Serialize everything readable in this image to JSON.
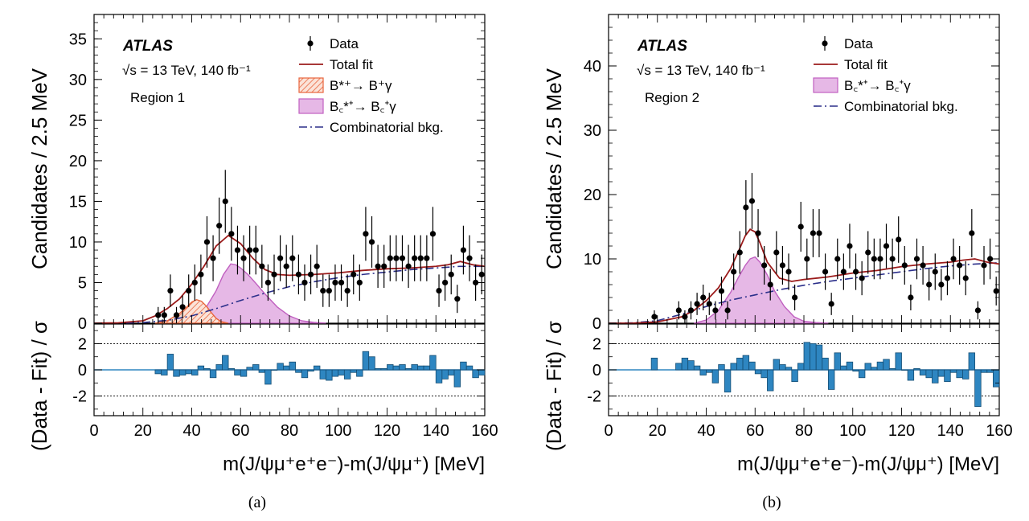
{
  "chart_data": [
    {
      "type": "scatter",
      "panel_label": "(a)",
      "experiment": "ATLAS",
      "energy_text": "√s = 13 TeV, 140 fb⁻¹",
      "region": "Region 1",
      "xlabel": "m(J/ψμ⁺e⁺e⁻)-m(J/ψμ⁺) [MeV]",
      "ylabel": "Candidates / 2.5 MeV",
      "ratio_ylabel": "(Data - Fit) / σ",
      "xlim": [
        0,
        160
      ],
      "ylim": [
        0,
        38
      ],
      "yticks": [
        0,
        5,
        10,
        15,
        20,
        25,
        30,
        35
      ],
      "xticks": [
        0,
        20,
        40,
        60,
        80,
        100,
        120,
        140,
        160
      ],
      "ratio_ylim": [
        -3.5,
        3.5
      ],
      "ratio_yticks": [
        -2,
        0,
        2
      ],
      "ratio_reference_lines": [
        -2,
        2
      ],
      "legend": {
        "data": "Data",
        "total_fit": "Total fit",
        "signal_b": "B*⁺→ B⁺γ",
        "signal_bc": "B꜀*⁺→ B꜀⁺γ",
        "combinatorial": "Combinatorial bkg."
      },
      "colors": {
        "data": "#000000",
        "total_fit": "#9b1b1b",
        "signal_b": "#e8643c",
        "signal_bc": "#c060c0",
        "signal_bc_fill": "#e6b8e6",
        "combinatorial": "#2b2f8a",
        "residual": "#2e86c1"
      },
      "series": [
        {
          "name": "Data",
          "x": [
            26.25,
            28.75,
            31.25,
            33.75,
            36.25,
            38.75,
            41.25,
            43.75,
            46.25,
            48.75,
            51.25,
            53.75,
            56.25,
            58.75,
            61.25,
            63.75,
            66.25,
            68.75,
            71.25,
            73.75,
            76.25,
            78.75,
            81.25,
            83.75,
            86.25,
            88.75,
            91.25,
            93.75,
            96.25,
            98.75,
            101.25,
            103.75,
            106.25,
            108.75,
            111.25,
            113.75,
            116.25,
            118.75,
            121.25,
            123.75,
            126.25,
            128.75,
            131.25,
            133.75,
            136.25,
            138.75,
            141.25,
            143.75,
            146.25,
            148.75,
            151.25,
            153.75,
            156.25,
            158.75
          ],
          "y": [
            1,
            1,
            4,
            1,
            2,
            4,
            5,
            6,
            10,
            8,
            12,
            15,
            11,
            9,
            8,
            9,
            9,
            7,
            5,
            6,
            8,
            7,
            8,
            6,
            5,
            6,
            7,
            4,
            4,
            5,
            5,
            4,
            6,
            5,
            11,
            10,
            7,
            7,
            8,
            8,
            8,
            7,
            8,
            8,
            8,
            11,
            4,
            5,
            6,
            3,
            9,
            8,
            5,
            6
          ]
        },
        {
          "name": "Total fit",
          "x": [
            0,
            10,
            20,
            25,
            30,
            35,
            40,
            45,
            50,
            55,
            60,
            65,
            70,
            75,
            80,
            90,
            100,
            110,
            120,
            130,
            140,
            145,
            150,
            155,
            160
          ],
          "y": [
            0,
            0.05,
            0.3,
            0.9,
            1.8,
            3.0,
            4.8,
            7.0,
            9.5,
            10.8,
            9.8,
            8.0,
            6.6,
            6.0,
            5.9,
            6.0,
            6.2,
            6.5,
            6.7,
            6.8,
            7.0,
            7.2,
            7.6,
            7.2,
            7.0
          ]
        },
        {
          "name": "B*⁺→ B⁺γ",
          "x": [
            25,
            30,
            35,
            38,
            40,
            42,
            44,
            46,
            48,
            50,
            52,
            55
          ],
          "y": [
            0,
            0.3,
            1.2,
            2.0,
            2.6,
            2.9,
            2.7,
            2.1,
            1.3,
            0.6,
            0.2,
            0
          ]
        },
        {
          "name": "B꜀*⁺→ B꜀⁺γ",
          "x": [
            40,
            45,
            50,
            53,
            56,
            58,
            60,
            63,
            66,
            70,
            75,
            80,
            85,
            90,
            95
          ],
          "y": [
            0.2,
            1.5,
            4.0,
            6.0,
            7.3,
            7.2,
            6.8,
            6.0,
            5.0,
            3.6,
            2.0,
            0.9,
            0.3,
            0.1,
            0
          ]
        },
        {
          "name": "Combinatorial bkg.",
          "x": [
            0,
            10,
            20,
            30,
            40,
            50,
            60,
            70,
            80,
            90,
            100,
            110,
            120,
            130,
            140,
            150,
            160
          ],
          "y": [
            0,
            0.01,
            0.08,
            0.35,
            0.9,
            1.8,
            2.8,
            3.7,
            4.5,
            5.1,
            5.6,
            6.0,
            6.3,
            6.6,
            6.8,
            7.0,
            7.0
          ]
        }
      ],
      "residuals": {
        "x": [
          26.25,
          28.75,
          31.25,
          33.75,
          36.25,
          38.75,
          41.25,
          43.75,
          46.25,
          48.75,
          51.25,
          53.75,
          56.25,
          58.75,
          61.25,
          63.75,
          66.25,
          68.75,
          71.25,
          73.75,
          76.25,
          78.75,
          81.25,
          83.75,
          86.25,
          88.75,
          91.25,
          93.75,
          96.25,
          98.75,
          101.25,
          103.75,
          106.25,
          108.75,
          111.25,
          113.75,
          116.25,
          118.75,
          121.25,
          123.75,
          126.25,
          128.75,
          131.25,
          133.75,
          136.25,
          138.75,
          141.25,
          143.75,
          146.25,
          148.75,
          151.25,
          153.75,
          156.25,
          158.75
        ],
        "y": [
          -0.3,
          -0.4,
          1.2,
          -0.5,
          -0.4,
          -0.3,
          -0.4,
          0.3,
          0.1,
          -0.6,
          0.4,
          1.1,
          0.1,
          -0.4,
          -0.5,
          0.2,
          0.4,
          -0.2,
          -1.1,
          0,
          0.5,
          0.3,
          0.6,
          -0.2,
          -0.6,
          -0.1,
          0.3,
          -0.7,
          -0.8,
          -0.5,
          -0.4,
          -0.7,
          -0.2,
          -0.5,
          1.4,
          1.0,
          0.1,
          0.1,
          0.4,
          0.3,
          0.4,
          0.1,
          0.4,
          0.3,
          0.3,
          1.1,
          -1.0,
          -0.7,
          -0.4,
          -1.3,
          0.6,
          0.3,
          -0.6,
          -0.4
        ]
      }
    },
    {
      "type": "scatter",
      "panel_label": "(b)",
      "experiment": "ATLAS",
      "energy_text": "√s = 13 TeV, 140 fb⁻¹",
      "region": "Region 2",
      "xlabel": "m(J/ψμ⁺e⁺e⁻)-m(J/ψμ⁺) [MeV]",
      "ylabel": "Candidates / 2.5 MeV",
      "ratio_ylabel": "(Data - Fit) / σ",
      "xlim": [
        0,
        160
      ],
      "ylim": [
        0,
        48
      ],
      "yticks": [
        0,
        10,
        20,
        30,
        40
      ],
      "xticks": [
        0,
        20,
        40,
        60,
        80,
        100,
        120,
        140,
        160
      ],
      "ratio_ylim": [
        -3.5,
        3.5
      ],
      "ratio_yticks": [
        -2,
        0,
        2
      ],
      "ratio_reference_lines": [
        -2,
        2
      ],
      "legend": {
        "data": "Data",
        "total_fit": "Total fit",
        "signal_bc": "B꜀*⁺→ B꜀⁺γ",
        "combinatorial": "Combinatorial bkg."
      },
      "colors": {
        "data": "#000000",
        "total_fit": "#9b1b1b",
        "signal_bc": "#c060c0",
        "signal_bc_fill": "#e6b8e6",
        "combinatorial": "#2b2f8a",
        "residual": "#2e86c1"
      },
      "series": [
        {
          "name": "Data",
          "x": [
            18.75,
            28.75,
            31.25,
            33.75,
            36.25,
            38.75,
            41.25,
            43.75,
            46.25,
            48.75,
            51.25,
            53.75,
            56.25,
            58.75,
            61.25,
            63.75,
            66.25,
            68.75,
            71.25,
            73.75,
            76.25,
            78.75,
            81.25,
            83.75,
            86.25,
            88.75,
            91.25,
            93.75,
            96.25,
            98.75,
            101.25,
            103.75,
            106.25,
            108.75,
            111.25,
            113.75,
            116.25,
            118.75,
            121.25,
            123.75,
            126.25,
            128.75,
            131.25,
            133.75,
            136.25,
            138.75,
            141.25,
            143.75,
            146.25,
            148.75,
            151.25,
            153.75,
            156.25,
            158.75
          ],
          "y": [
            1,
            2,
            1,
            2,
            3,
            4,
            3,
            2,
            5,
            2,
            8,
            11,
            18,
            19,
            14,
            9,
            6,
            11,
            9,
            8,
            4,
            15,
            10,
            14,
            14,
            8,
            3,
            10,
            8,
            12,
            8,
            7,
            11,
            10,
            10,
            12,
            10,
            13,
            9,
            4,
            10,
            9,
            6,
            8,
            6,
            7,
            10,
            9,
            7,
            14,
            2,
            9,
            10,
            5
          ]
        },
        {
          "name": "Total fit",
          "x": [
            0,
            10,
            20,
            30,
            35,
            40,
            45,
            50,
            53,
            56,
            58,
            60,
            62,
            65,
            70,
            75,
            80,
            90,
            100,
            110,
            120,
            130,
            140,
            145,
            150,
            155,
            160
          ],
          "y": [
            0,
            0.02,
            0.2,
            1.0,
            2.0,
            3.5,
            5.5,
            8.5,
            11.0,
            13.6,
            14.6,
            14.2,
            12.5,
            9.5,
            7.0,
            6.5,
            6.8,
            7.2,
            7.8,
            8.2,
            8.8,
            9.2,
            9.5,
            9.8,
            10.0,
            9.5,
            9.2
          ]
        },
        {
          "name": "B꜀*⁺→ B꜀⁺γ",
          "x": [
            35,
            40,
            45,
            50,
            53,
            56,
            58,
            60,
            62,
            65,
            68,
            72,
            76,
            80,
            85,
            90
          ],
          "y": [
            0,
            0.5,
            2.0,
            4.8,
            7.0,
            9.0,
            10.0,
            10.3,
            9.5,
            7.5,
            5.0,
            2.6,
            1.0,
            0.3,
            0.1,
            0
          ]
        },
        {
          "name": "Combinatorial bkg.",
          "x": [
            0,
            10,
            20,
            30,
            40,
            50,
            60,
            70,
            80,
            90,
            100,
            110,
            120,
            130,
            140,
            150,
            160
          ],
          "y": [
            0,
            0.05,
            0.4,
            1.4,
            2.6,
            3.6,
            4.4,
            5.2,
            5.9,
            6.5,
            7.0,
            7.5,
            8.0,
            8.5,
            8.9,
            9.2,
            9.4
          ]
        }
      ],
      "residuals": {
        "x": [
          18.75,
          28.75,
          31.25,
          33.75,
          36.25,
          38.75,
          41.25,
          43.75,
          46.25,
          48.75,
          51.25,
          53.75,
          56.25,
          58.75,
          61.25,
          63.75,
          66.25,
          68.75,
          71.25,
          73.75,
          76.25,
          78.75,
          81.25,
          83.75,
          86.25,
          88.75,
          91.25,
          93.75,
          96.25,
          98.75,
          101.25,
          103.75,
          106.25,
          108.75,
          111.25,
          113.75,
          116.25,
          118.75,
          121.25,
          123.75,
          126.25,
          128.75,
          131.25,
          133.75,
          136.25,
          138.75,
          141.25,
          143.75,
          146.25,
          148.75,
          151.25,
          153.75,
          156.25,
          158.75
        ],
        "y": [
          0.9,
          0.5,
          0.9,
          0.7,
          0.3,
          -0.4,
          -0.2,
          -1.0,
          0.4,
          -1.7,
          0.5,
          0.9,
          1.1,
          0.6,
          -0.3,
          -0.6,
          -1.6,
          0.8,
          0.4,
          0.2,
          -0.9,
          0.5,
          2.1,
          2.0,
          1.9,
          0.9,
          -1.5,
          1.3,
          0.3,
          0.6,
          -0.1,
          -0.6,
          0.5,
          0.2,
          0.6,
          0.8,
          0.1,
          1.3,
          0,
          -0.8,
          0.1,
          -0.4,
          -0.6,
          -1.0,
          -0.5,
          -0.9,
          -0.2,
          -0.6,
          -0.7,
          1.3,
          -2.8,
          -0.2,
          -0.2,
          -1.3
        ]
      }
    }
  ]
}
